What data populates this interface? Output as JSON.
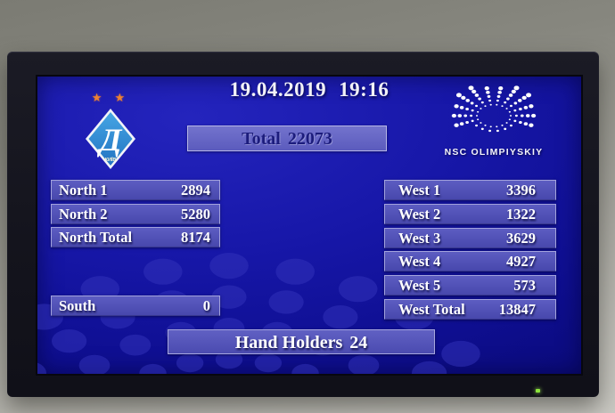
{
  "header": {
    "date": "19.04.2019",
    "time": "19:16"
  },
  "total": {
    "label": "Total",
    "value": "22073"
  },
  "club_logo": {
    "name": "FC Dynamo Kyiv",
    "stars": "★ ★",
    "letter": "Д",
    "city": "КИЇВ"
  },
  "stadium_logo": {
    "caption": "NSC OLIMPIYSKIY"
  },
  "sections": {
    "left": [
      {
        "label": "North 1",
        "value": "2894"
      },
      {
        "label": "North 2",
        "value": "5280"
      },
      {
        "label": "North Total",
        "value": "8174"
      },
      {
        "label": "South",
        "value": "0"
      }
    ],
    "right": [
      {
        "label": "West 1",
        "value": "3396"
      },
      {
        "label": "West 2",
        "value": "1322"
      },
      {
        "label": "West 3",
        "value": "3629"
      },
      {
        "label": "West 4",
        "value": "4927"
      },
      {
        "label": "West 5",
        "value": "573"
      },
      {
        "label": "West Total",
        "value": "13847"
      }
    ]
  },
  "hand_holders": {
    "label": "Hand Holders",
    "value": "24"
  },
  "colors": {
    "screen_blue": "#11119c",
    "bar_blue": "#4d4db4",
    "bar_border": "#a2a2dc",
    "total_text": "#1c1c7c",
    "datetime_text": "#f2f2f7",
    "dynamo_azure": "#2f8fd9",
    "star_orange": "#ee8130",
    "led_green": "#8be33c",
    "watermark_dot": "#3434bb",
    "logo_white": "#ffffff"
  }
}
